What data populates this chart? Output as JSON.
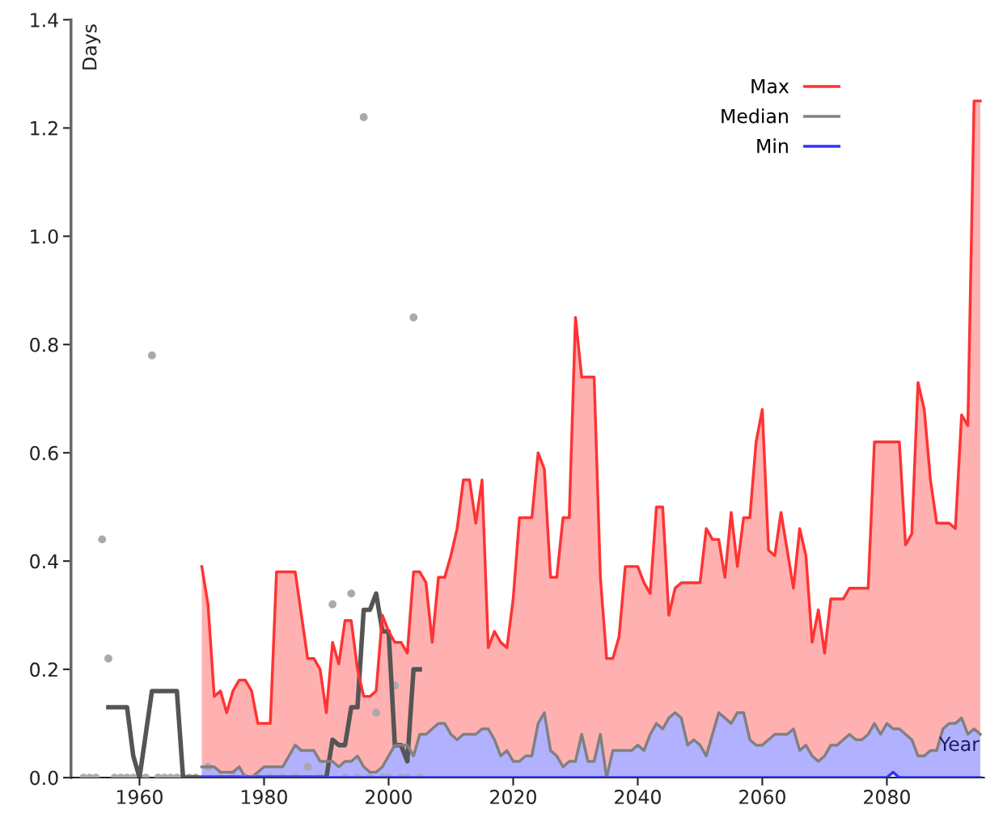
{
  "chart_data": {
    "type": "line",
    "xlabel": "Year",
    "ylabel": "Days",
    "xlim": [
      1949,
      2095.6
    ],
    "xticks": [
      1960,
      1980,
      2000,
      2020,
      2040,
      2060,
      2080
    ],
    "ylim": [
      0.0,
      1.4
    ],
    "yticks": [
      {
        "value": 0,
        "label": "0.0"
      },
      0.2,
      0.4,
      0.6,
      0.8,
      {
        "value": 1,
        "label": "1.0"
      },
      1.2,
      1.4
    ],
    "grid": false,
    "legend": "top right",
    "line_style": "solid",
    "series": [
      {
        "name": "Max",
        "color": "#ff3333",
        "x": [
          1970,
          1971,
          1972,
          1973,
          1974,
          1975,
          1976,
          1977,
          1978,
          1979,
          1980,
          1981,
          1982,
          1983,
          1984,
          1985,
          1986,
          1987,
          1988,
          1989,
          1990,
          1991,
          1992,
          1993,
          1994,
          1995,
          1996,
          1997,
          1998,
          1999,
          2000,
          2001,
          2002,
          2003,
          2004,
          2005,
          2006,
          2007,
          2008,
          2009,
          2010,
          2011,
          2012,
          2013,
          2014,
          2015,
          2016,
          2017,
          2018,
          2019,
          2020,
          2021,
          2022,
          2023,
          2024,
          2025,
          2026,
          2027,
          2028,
          2029,
          2030,
          2031,
          2032,
          2033,
          2034,
          2035,
          2036,
          2037,
          2038,
          2039,
          2040,
          2041,
          2042,
          2043,
          2044,
          2045,
          2046,
          2047,
          2048,
          2049,
          2050,
          2051,
          2052,
          2053,
          2054,
          2055,
          2056,
          2057,
          2058,
          2059,
          2060,
          2061,
          2062,
          2063,
          2064,
          2065,
          2066,
          2067,
          2068,
          2069,
          2070,
          2071,
          2072,
          2073,
          2074,
          2075,
          2076,
          2077,
          2078,
          2079,
          2080,
          2081,
          2082,
          2083,
          2084,
          2085,
          2086,
          2087,
          2088,
          2089,
          2090,
          2091,
          2092,
          2093,
          2094,
          2095
        ],
        "values": [
          0.39,
          0.32,
          0.15,
          0.16,
          0.12,
          0.16,
          0.18,
          0.18,
          0.16,
          0.1,
          0.1,
          0.1,
          0.38,
          0.38,
          0.38,
          0.38,
          0.3,
          0.22,
          0.22,
          0.2,
          0.12,
          0.25,
          0.21,
          0.29,
          0.29,
          0.2,
          0.15,
          0.15,
          0.16,
          0.3,
          0.27,
          0.25,
          0.25,
          0.23,
          0.38,
          0.38,
          0.36,
          0.25,
          0.37,
          0.37,
          0.41,
          0.46,
          0.55,
          0.55,
          0.47,
          0.55,
          0.24,
          0.27,
          0.25,
          0.24,
          0.33,
          0.48,
          0.48,
          0.48,
          0.6,
          0.57,
          0.37,
          0.37,
          0.48,
          0.48,
          0.85,
          0.74,
          0.74,
          0.74,
          0.37,
          0.22,
          0.22,
          0.26,
          0.39,
          0.39,
          0.39,
          0.36,
          0.34,
          0.5,
          0.5,
          0.3,
          0.35,
          0.36,
          0.36,
          0.36,
          0.36,
          0.46,
          0.44,
          0.44,
          0.37,
          0.49,
          0.39,
          0.48,
          0.48,
          0.62,
          0.68,
          0.42,
          0.41,
          0.49,
          0.42,
          0.35,
          0.46,
          0.41,
          0.25,
          0.31,
          0.23,
          0.33,
          0.33,
          0.33,
          0.35,
          0.35,
          0.35,
          0.35,
          0.62,
          0.62,
          0.62,
          0.62,
          0.62,
          0.43,
          0.45,
          0.73,
          0.68,
          0.55,
          0.47,
          0.47,
          0.47,
          0.46,
          0.67,
          0.65,
          1.25,
          1.25
        ],
        "lower": [
          0.02,
          0.02,
          0.02,
          0.01,
          0.01,
          0.01,
          0.02,
          0.0,
          0.0,
          0.01,
          0.02,
          0.02,
          0.02,
          0.02,
          0.04,
          0.06,
          0.05,
          0.05,
          0.05,
          0.03,
          0.03,
          0.03,
          0.02,
          0.03,
          0.03,
          0.04,
          0.02,
          0.01,
          0.01,
          0.02,
          0.04,
          0.06,
          0.06,
          0.06,
          0.04,
          0.08,
          0.08,
          0.09,
          0.1,
          0.1,
          0.08,
          0.07,
          0.08,
          0.08,
          0.08,
          0.09,
          0.09,
          0.07,
          0.04,
          0.05,
          0.03,
          0.03,
          0.04,
          0.04,
          0.1,
          0.12,
          0.05,
          0.04,
          0.02,
          0.03,
          0.03,
          0.08,
          0.03,
          0.03,
          0.08,
          0.0,
          0.05,
          0.05,
          0.05,
          0.05,
          0.06,
          0.05,
          0.08,
          0.1,
          0.09,
          0.11,
          0.12,
          0.11,
          0.06,
          0.07,
          0.06,
          0.04,
          0.08,
          0.12,
          0.11,
          0.1,
          0.12,
          0.12,
          0.07,
          0.06,
          0.06,
          0.07,
          0.08,
          0.08,
          0.08,
          0.09,
          0.05,
          0.06,
          0.04,
          0.03,
          0.04,
          0.06,
          0.06,
          0.07,
          0.08,
          0.07,
          0.07,
          0.08,
          0.1,
          0.08,
          0.1,
          0.09,
          0.09,
          0.08,
          0.07,
          0.04,
          0.04,
          0.05,
          0.05,
          0.09,
          0.1,
          0.1,
          0.11,
          0.08,
          0.09,
          0.08
        ],
        "upper": [
          0.39,
          0.32,
          0.15,
          0.16,
          0.12,
          0.16,
          0.18,
          0.18,
          0.16,
          0.1,
          0.1,
          0.1,
          0.38,
          0.38,
          0.38,
          0.38,
          0.3,
          0.22,
          0.22,
          0.2,
          0.12,
          0.25,
          0.21,
          0.29,
          0.29,
          0.2,
          0.15,
          0.15,
          0.16,
          0.3,
          0.27,
          0.25,
          0.25,
          0.23,
          0.38,
          0.38,
          0.36,
          0.25,
          0.37,
          0.37,
          0.41,
          0.46,
          0.55,
          0.55,
          0.47,
          0.55,
          0.24,
          0.27,
          0.25,
          0.24,
          0.33,
          0.48,
          0.48,
          0.48,
          0.6,
          0.57,
          0.37,
          0.37,
          0.48,
          0.48,
          0.85,
          0.74,
          0.74,
          0.74,
          0.37,
          0.22,
          0.22,
          0.26,
          0.39,
          0.39,
          0.39,
          0.36,
          0.34,
          0.5,
          0.5,
          0.3,
          0.35,
          0.36,
          0.36,
          0.36,
          0.36,
          0.46,
          0.44,
          0.44,
          0.37,
          0.49,
          0.39,
          0.48,
          0.48,
          0.62,
          0.68,
          0.42,
          0.41,
          0.49,
          0.42,
          0.35,
          0.46,
          0.41,
          0.25,
          0.31,
          0.23,
          0.33,
          0.33,
          0.33,
          0.35,
          0.35,
          0.35,
          0.35,
          0.62,
          0.62,
          0.62,
          0.62,
          0.62,
          0.43,
          0.45,
          0.73,
          0.68,
          0.55,
          0.47,
          0.47,
          0.47,
          0.46,
          0.67,
          0.65,
          1.25,
          1.25
        ]
      },
      {
        "name": "Median",
        "color": "#808080",
        "x": [
          1970,
          1971,
          1972,
          1973,
          1974,
          1975,
          1976,
          1977,
          1978,
          1979,
          1980,
          1981,
          1982,
          1983,
          1984,
          1985,
          1986,
          1987,
          1988,
          1989,
          1990,
          1991,
          1992,
          1993,
          1994,
          1995,
          1996,
          1997,
          1998,
          1999,
          2000,
          2001,
          2002,
          2003,
          2004,
          2005,
          2006,
          2007,
          2008,
          2009,
          2010,
          2011,
          2012,
          2013,
          2014,
          2015,
          2016,
          2017,
          2018,
          2019,
          2020,
          2021,
          2022,
          2023,
          2024,
          2025,
          2026,
          2027,
          2028,
          2029,
          2030,
          2031,
          2032,
          2033,
          2034,
          2035,
          2036,
          2037,
          2038,
          2039,
          2040,
          2041,
          2042,
          2043,
          2044,
          2045,
          2046,
          2047,
          2048,
          2049,
          2050,
          2051,
          2052,
          2053,
          2054,
          2055,
          2056,
          2057,
          2058,
          2059,
          2060,
          2061,
          2062,
          2063,
          2064,
          2065,
          2066,
          2067,
          2068,
          2069,
          2070,
          2071,
          2072,
          2073,
          2074,
          2075,
          2076,
          2077,
          2078,
          2079,
          2080,
          2081,
          2082,
          2083,
          2084,
          2085,
          2086,
          2087,
          2088,
          2089,
          2090,
          2091,
          2092,
          2093,
          2094,
          2095
        ],
        "values": [
          0.02,
          0.02,
          0.02,
          0.01,
          0.01,
          0.01,
          0.02,
          0.0,
          0.0,
          0.01,
          0.02,
          0.02,
          0.02,
          0.02,
          0.04,
          0.06,
          0.05,
          0.05,
          0.05,
          0.03,
          0.03,
          0.03,
          0.02,
          0.03,
          0.03,
          0.04,
          0.02,
          0.01,
          0.01,
          0.02,
          0.04,
          0.06,
          0.06,
          0.06,
          0.04,
          0.08,
          0.08,
          0.09,
          0.1,
          0.1,
          0.08,
          0.07,
          0.08,
          0.08,
          0.08,
          0.09,
          0.09,
          0.07,
          0.04,
          0.05,
          0.03,
          0.03,
          0.04,
          0.04,
          0.1,
          0.12,
          0.05,
          0.04,
          0.02,
          0.03,
          0.03,
          0.08,
          0.03,
          0.03,
          0.08,
          0.0,
          0.05,
          0.05,
          0.05,
          0.05,
          0.06,
          0.05,
          0.08,
          0.1,
          0.09,
          0.11,
          0.12,
          0.11,
          0.06,
          0.07,
          0.06,
          0.04,
          0.08,
          0.12,
          0.11,
          0.1,
          0.12,
          0.12,
          0.07,
          0.06,
          0.06,
          0.07,
          0.08,
          0.08,
          0.08,
          0.09,
          0.05,
          0.06,
          0.04,
          0.03,
          0.04,
          0.06,
          0.06,
          0.07,
          0.08,
          0.07,
          0.07,
          0.08,
          0.1,
          0.08,
          0.1,
          0.09,
          0.09,
          0.08,
          0.07,
          0.04,
          0.04,
          0.05,
          0.05,
          0.09,
          0.1,
          0.1,
          0.11,
          0.08,
          0.09,
          0.08
        ]
      },
      {
        "name": "Min",
        "color": "#3333ff",
        "x": [
          1970,
          1971,
          1972,
          1973,
          1974,
          1975,
          1976,
          1977,
          1978,
          1979,
          1980,
          1981,
          1982,
          1983,
          1984,
          1985,
          1986,
          1987,
          1988,
          1989,
          1990,
          1991,
          1992,
          1993,
          1994,
          1995,
          1996,
          1997,
          1998,
          1999,
          2000,
          2001,
          2002,
          2003,
          2004,
          2005,
          2006,
          2007,
          2008,
          2009,
          2010,
          2011,
          2012,
          2013,
          2014,
          2015,
          2016,
          2017,
          2018,
          2019,
          2020,
          2021,
          2022,
          2023,
          2024,
          2025,
          2026,
          2027,
          2028,
          2029,
          2030,
          2031,
          2032,
          2033,
          2034,
          2035,
          2036,
          2037,
          2038,
          2039,
          2040,
          2041,
          2042,
          2043,
          2044,
          2045,
          2046,
          2047,
          2048,
          2049,
          2050,
          2051,
          2052,
          2053,
          2054,
          2055,
          2056,
          2057,
          2058,
          2059,
          2060,
          2061,
          2062,
          2063,
          2064,
          2065,
          2066,
          2067,
          2068,
          2069,
          2070,
          2071,
          2072,
          2073,
          2074,
          2075,
          2076,
          2077,
          2078,
          2079,
          2080,
          2081,
          2082,
          2083,
          2084,
          2085,
          2086,
          2087,
          2088,
          2089,
          2090,
          2091,
          2092,
          2093,
          2094,
          2095
        ],
        "values": [
          0,
          0,
          0,
          0,
          0,
          0,
          0,
          0,
          0,
          0,
          0,
          0,
          0,
          0,
          0,
          0,
          0,
          0,
          0,
          0,
          0,
          0,
          0,
          0,
          0,
          0,
          0,
          0,
          0,
          0,
          0,
          0,
          0,
          0,
          0,
          0,
          0,
          0,
          0,
          0,
          0,
          0,
          0,
          0,
          0,
          0,
          0,
          0,
          0,
          0,
          0,
          0,
          0,
          0,
          0,
          0,
          0,
          0,
          0,
          0,
          0,
          0,
          0,
          0,
          0,
          0,
          0,
          0,
          0,
          0,
          0,
          0,
          0,
          0,
          0,
          0,
          0,
          0,
          0,
          0,
          0,
          0,
          0,
          0,
          0,
          0,
          0,
          0,
          0,
          0,
          0,
          0,
          0,
          0,
          0,
          0,
          0,
          0,
          0,
          0,
          0,
          0,
          0,
          0,
          0,
          0,
          0,
          0,
          0,
          0,
          0,
          0.01,
          0,
          0,
          0,
          0,
          0,
          0,
          0,
          0,
          0,
          0,
          0,
          0,
          0,
          0
        ],
        "lower": [
          0,
          0,
          0,
          0,
          0,
          0,
          0,
          0,
          0,
          0,
          0,
          0,
          0,
          0,
          0,
          0,
          0,
          0,
          0,
          0,
          0,
          0,
          0,
          0,
          0,
          0,
          0,
          0,
          0,
          0,
          0,
          0,
          0,
          0,
          0,
          0,
          0,
          0,
          0,
          0,
          0,
          0,
          0,
          0,
          0,
          0,
          0,
          0,
          0,
          0,
          0,
          0,
          0,
          0,
          0,
          0,
          0,
          0,
          0,
          0,
          0,
          0,
          0,
          0,
          0,
          0,
          0,
          0,
          0,
          0,
          0,
          0,
          0,
          0,
          0,
          0,
          0,
          0,
          0,
          0,
          0,
          0,
          0,
          0,
          0,
          0,
          0,
          0,
          0,
          0,
          0,
          0,
          0,
          0,
          0,
          0,
          0,
          0,
          0,
          0,
          0,
          0,
          0,
          0,
          0,
          0,
          0,
          0,
          0,
          0,
          0,
          0.01,
          0,
          0,
          0,
          0,
          0,
          0,
          0,
          0,
          0,
          0,
          0,
          0,
          0,
          0
        ],
        "upper": [
          0.02,
          0.02,
          0.02,
          0.01,
          0.01,
          0.01,
          0.02,
          0.0,
          0.0,
          0.01,
          0.02,
          0.02,
          0.02,
          0.02,
          0.04,
          0.06,
          0.05,
          0.05,
          0.05,
          0.03,
          0.03,
          0.03,
          0.02,
          0.03,
          0.03,
          0.04,
          0.02,
          0.01,
          0.01,
          0.02,
          0.04,
          0.06,
          0.06,
          0.06,
          0.04,
          0.08,
          0.08,
          0.09,
          0.1,
          0.1,
          0.08,
          0.07,
          0.08,
          0.08,
          0.08,
          0.09,
          0.09,
          0.07,
          0.04,
          0.05,
          0.03,
          0.03,
          0.04,
          0.04,
          0.1,
          0.12,
          0.05,
          0.04,
          0.02,
          0.03,
          0.03,
          0.08,
          0.03,
          0.03,
          0.08,
          0.0,
          0.05,
          0.05,
          0.05,
          0.05,
          0.06,
          0.05,
          0.08,
          0.1,
          0.09,
          0.11,
          0.12,
          0.11,
          0.06,
          0.07,
          0.06,
          0.04,
          0.08,
          0.12,
          0.11,
          0.1,
          0.12,
          0.12,
          0.07,
          0.06,
          0.06,
          0.07,
          0.08,
          0.08,
          0.08,
          0.09,
          0.05,
          0.06,
          0.04,
          0.03,
          0.04,
          0.06,
          0.06,
          0.07,
          0.08,
          0.07,
          0.07,
          0.08,
          0.1,
          0.08,
          0.1,
          0.09,
          0.09,
          0.08,
          0.07,
          0.04,
          0.04,
          0.05,
          0.05,
          0.09,
          0.1,
          0.1,
          0.11,
          0.08,
          0.09,
          0.08
        ]
      },
      {
        "color": "#555555",
        "x": [
          1955,
          1956,
          1957,
          1958,
          1959,
          1960,
          1961,
          1962,
          1963,
          1964,
          1965,
          1966,
          1967,
          1968,
          1970,
          1980,
          1990,
          1991,
          1992,
          1993,
          1994,
          1995,
          1996,
          1997,
          1998,
          1999,
          2000,
          2001,
          2002,
          2003,
          2004,
          2005
        ],
        "values": [
          0.13,
          0.13,
          0.13,
          0.13,
          0.04,
          0.0,
          0.08,
          0.16,
          0.16,
          0.16,
          0.16,
          0.16,
          0.0,
          0.0,
          0.0,
          0.0,
          0.0,
          0.07,
          0.06,
          0.06,
          0.13,
          0.13,
          0.31,
          0.31,
          0.34,
          0.27,
          0.27,
          0.06,
          0.06,
          0.03,
          0.2,
          0.2
        ]
      },
      {
        "type": "scatter",
        "marker": "circle",
        "color": "#aaaaaa",
        "x": [
          1951,
          1952,
          1953,
          1954,
          1955,
          1956,
          1957,
          1958,
          1959,
          1960,
          1961,
          1962,
          1963,
          1964,
          1965,
          1966,
          1967,
          1968,
          1969,
          1971,
          1973,
          1975,
          1977,
          1979,
          1981,
          1983,
          1985,
          1987,
          1989,
          1991,
          1993,
          1994,
          1995,
          1996,
          1997,
          1998,
          1999,
          2000,
          2001,
          2002,
          2003,
          2004,
          2005
        ],
        "values": [
          0.0,
          0.0,
          0.0,
          0.44,
          0.22,
          0.0,
          0.0,
          0.0,
          0.0,
          0.0,
          0.0,
          0.78,
          0.0,
          0.0,
          0.0,
          0.0,
          0.0,
          0.0,
          0.0,
          0.02,
          0.0,
          0.0,
          0.0,
          0.0,
          0.0,
          0.0,
          0.0,
          0.02,
          0.0,
          0.32,
          0.0,
          0.34,
          0.0,
          1.22,
          0.0,
          0.12,
          0.0,
          0.0,
          0.17,
          0.0,
          0.0,
          0.85,
          0.0
        ]
      }
    ]
  }
}
